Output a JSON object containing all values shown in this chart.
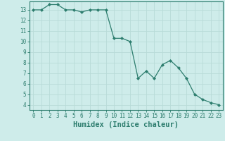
{
  "x": [
    0,
    1,
    2,
    3,
    4,
    5,
    6,
    7,
    8,
    9,
    10,
    11,
    12,
    13,
    14,
    15,
    16,
    17,
    18,
    19,
    20,
    21,
    22,
    23
  ],
  "y": [
    13.0,
    13.0,
    13.5,
    13.5,
    13.0,
    13.0,
    12.8,
    13.0,
    13.0,
    13.0,
    10.3,
    10.3,
    10.0,
    6.5,
    7.2,
    6.5,
    7.8,
    8.2,
    7.5,
    6.5,
    5.0,
    4.5,
    4.2,
    4.0
  ],
  "line_color": "#2d7d6e",
  "marker": "D",
  "marker_size": 2.0,
  "bg_color": "#ceecea",
  "grid_color": "#b8dbd8",
  "xlabel": "Humidex (Indice chaleur)",
  "ylim": [
    3.5,
    13.8
  ],
  "xlim": [
    -0.5,
    23.5
  ],
  "yticks": [
    4,
    5,
    6,
    7,
    8,
    9,
    10,
    11,
    12,
    13
  ],
  "xticks": [
    0,
    1,
    2,
    3,
    4,
    5,
    6,
    7,
    8,
    9,
    10,
    11,
    12,
    13,
    14,
    15,
    16,
    17,
    18,
    19,
    20,
    21,
    22,
    23
  ],
  "tick_fontsize": 5.5,
  "xlabel_fontsize": 7.5
}
